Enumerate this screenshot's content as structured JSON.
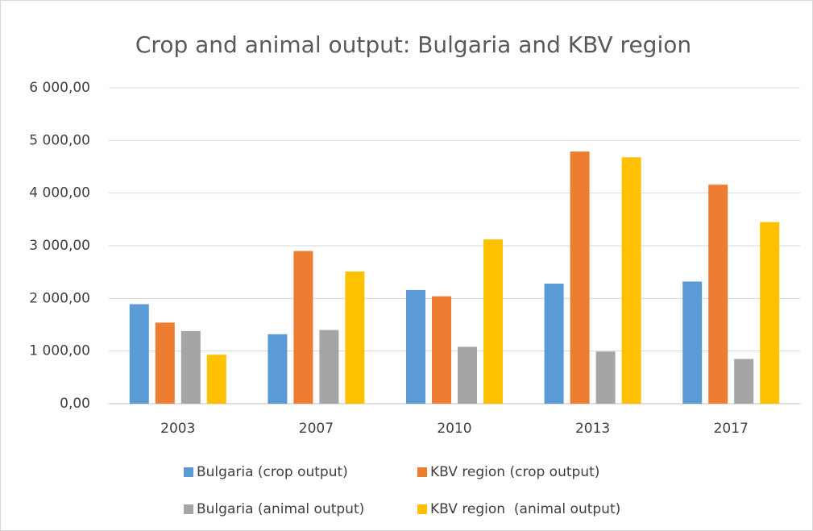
{
  "chart_data": {
    "type": "bar",
    "title": "Crop and animal output: Bulgaria and KBV region",
    "categories": [
      "2003",
      "2007",
      "2010",
      "2013",
      "2017"
    ],
    "series": [
      {
        "name": "Bulgaria (crop output)",
        "color": "#5b9bd5",
        "values": [
          1890,
          1320,
          2160,
          2280,
          2320
        ]
      },
      {
        "name": "KBV region (crop output)",
        "color": "#ed7d31",
        "values": [
          1540,
          2900,
          2040,
          4790,
          4160
        ]
      },
      {
        "name": "Bulgaria (animal output)",
        "color": "#a5a5a5",
        "values": [
          1380,
          1400,
          1080,
          990,
          850
        ]
      },
      {
        "name": "KBV region  (animal output)",
        "color": "#ffc000",
        "values": [
          930,
          2510,
          3120,
          4680,
          3450
        ]
      }
    ],
    "ylim": [
      0,
      6000
    ],
    "yticks": [
      {
        "value": 0,
        "label": "0,00"
      },
      {
        "value": 1000,
        "label": "1 000,00"
      },
      {
        "value": 2000,
        "label": "2 000,00"
      },
      {
        "value": 3000,
        "label": "3 000,00"
      },
      {
        "value": 4000,
        "label": "4 000,00"
      },
      {
        "value": 5000,
        "label": "5 000,00"
      },
      {
        "value": 6000,
        "label": "6 000,00"
      }
    ],
    "grid": true
  }
}
